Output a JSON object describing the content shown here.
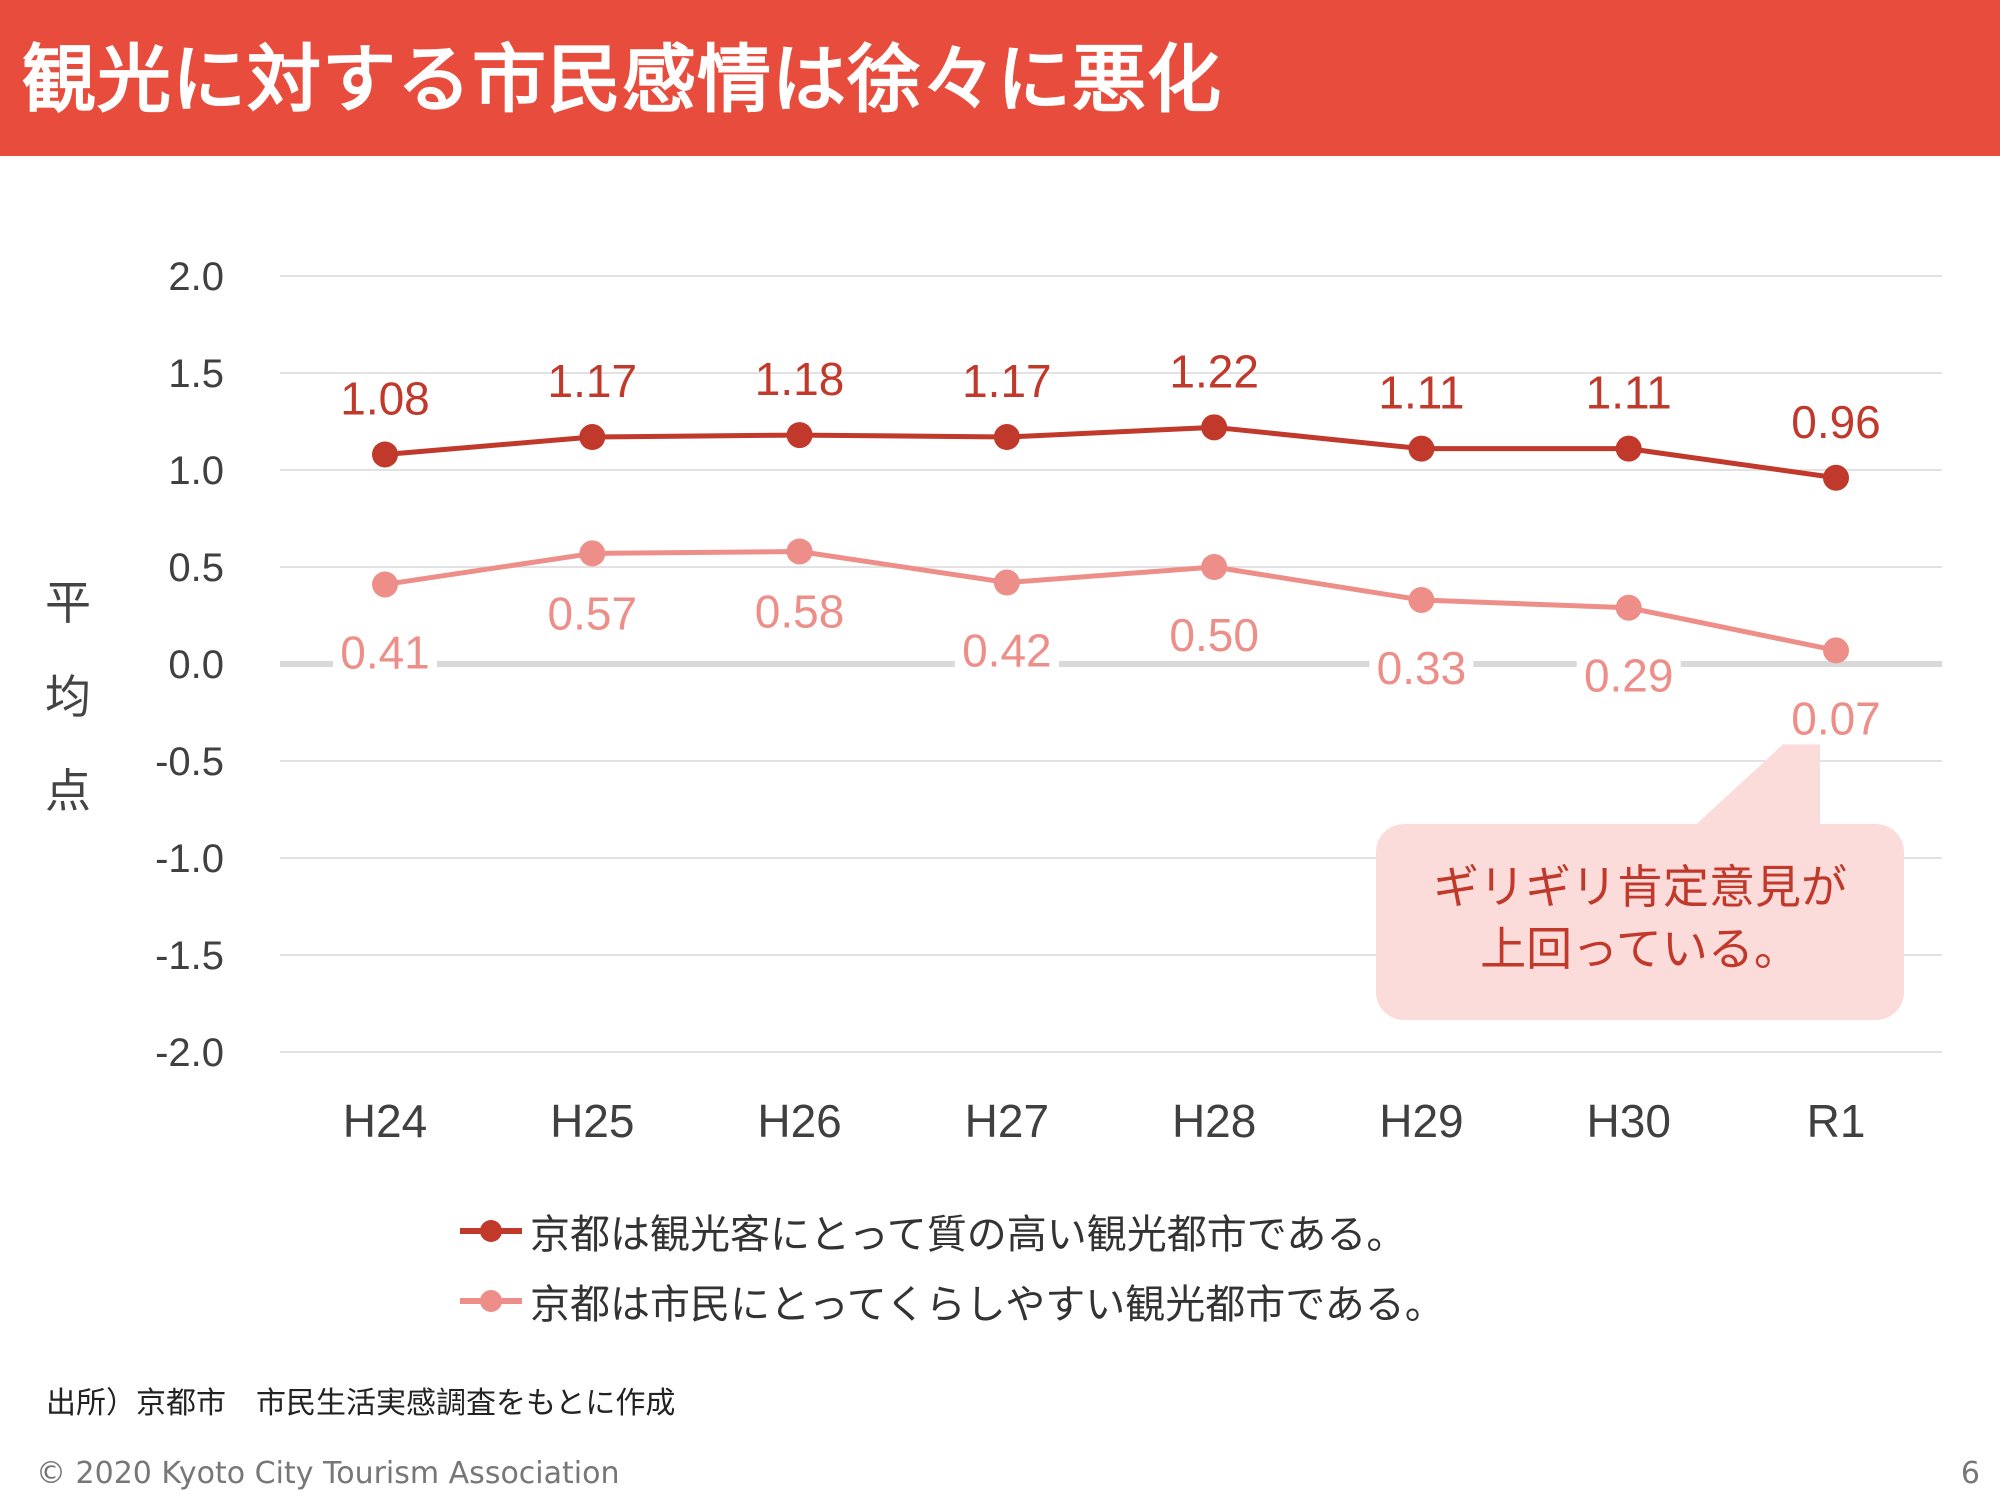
{
  "header": {
    "title": "観光に対する市民感情は徐々に悪化"
  },
  "colors": {
    "title_bg": "#E84C3D",
    "series1": "#C0392B",
    "series2": "#EE8E89",
    "callout_bg": "#FCDCDA",
    "grid": "#D9D9D9",
    "zero_line": "#D9D9D9"
  },
  "chart_data": {
    "type": "line",
    "categories": [
      "H24",
      "H25",
      "H26",
      "H27",
      "H28",
      "H29",
      "H30",
      "R1"
    ],
    "series": [
      {
        "name": "京都は観光客にとって質の高い観光都市である。",
        "values": [
          1.08,
          1.17,
          1.18,
          1.17,
          1.22,
          1.11,
          1.11,
          0.96
        ],
        "labels": [
          "1.08",
          "1.17",
          "1.18",
          "1.17",
          "1.22",
          "1.11",
          "1.11",
          "0.96"
        ]
      },
      {
        "name": "京都は市民にとってくらしやすい観光都市である。",
        "values": [
          0.41,
          0.57,
          0.58,
          0.42,
          0.5,
          0.33,
          0.29,
          0.07
        ],
        "labels": [
          "0.41",
          "0.57",
          "0.58",
          "0.42",
          "0.50",
          "0.33",
          "0.29",
          "0.07"
        ]
      }
    ],
    "ylabel": "平均点",
    "ylim": [
      -2.0,
      2.0
    ],
    "yticks": [
      "2.0",
      "1.5",
      "1.0",
      "0.5",
      "0.0",
      "-0.5",
      "-1.0",
      "-1.5",
      "-2.0"
    ],
    "ytick_values": [
      2.0,
      1.5,
      1.0,
      0.5,
      0.0,
      -0.5,
      -1.0,
      -1.5,
      -2.0
    ],
    "grid": true,
    "legend_position": "bottom"
  },
  "annotation": {
    "lines": [
      "ギリギリ肯定意見が",
      "上回っている。"
    ]
  },
  "source_note": "出所）京都市　市民生活実感調査をもとに作成",
  "footer": {
    "copyright": "© 2020 Kyoto City Tourism Association",
    "page_number": "6"
  }
}
